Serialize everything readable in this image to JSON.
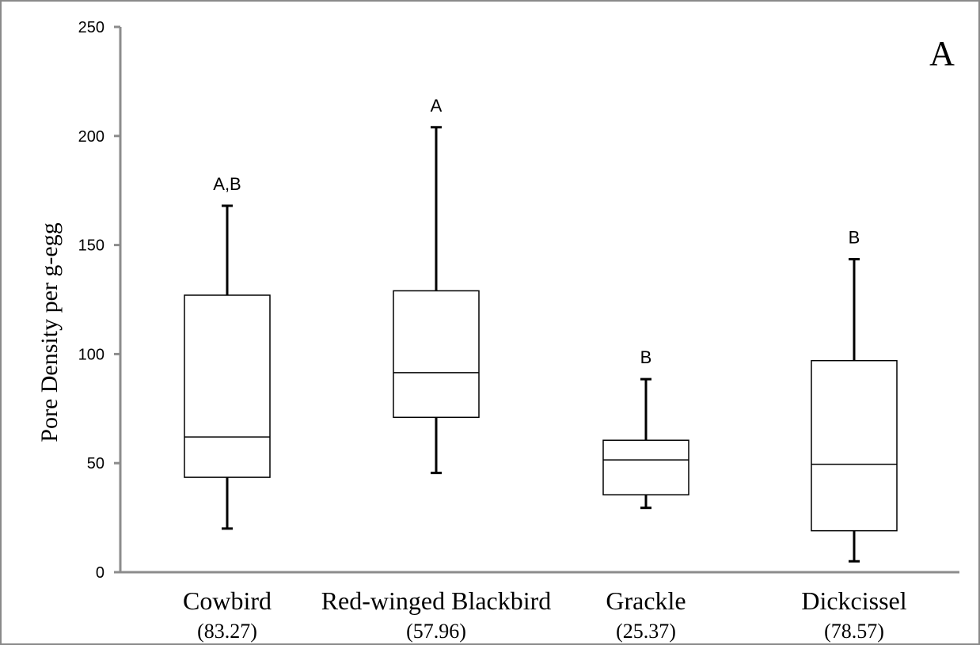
{
  "chart_data": {
    "type": "boxplot",
    "panel_label": "A",
    "ylabel": "Pore Density per g-egg",
    "ylim": [
      0,
      250
    ],
    "yticks": [
      0,
      50,
      100,
      150,
      200,
      250
    ],
    "grid": false,
    "categories": [
      "Cowbird",
      "Red-winged Blackbird",
      "Grackle",
      "Dickcissel"
    ],
    "sublabels": [
      "(83.27)",
      "(57.96)",
      "(25.37)",
      "(78.57)"
    ],
    "significance_letters": [
      "A,B",
      "A",
      "B",
      "B"
    ],
    "boxes": [
      {
        "min": 20,
        "q1": 43.5,
        "median": 62,
        "q3": 127,
        "max": 168
      },
      {
        "min": 45.5,
        "q1": 71,
        "median": 91.5,
        "q3": 129,
        "max": 204
      },
      {
        "min": 29.5,
        "q1": 35.5,
        "median": 51.5,
        "q3": 60.5,
        "max": 88.5
      },
      {
        "min": 5,
        "q1": 19,
        "median": 49.5,
        "q3": 97,
        "max": 143.5
      }
    ]
  }
}
